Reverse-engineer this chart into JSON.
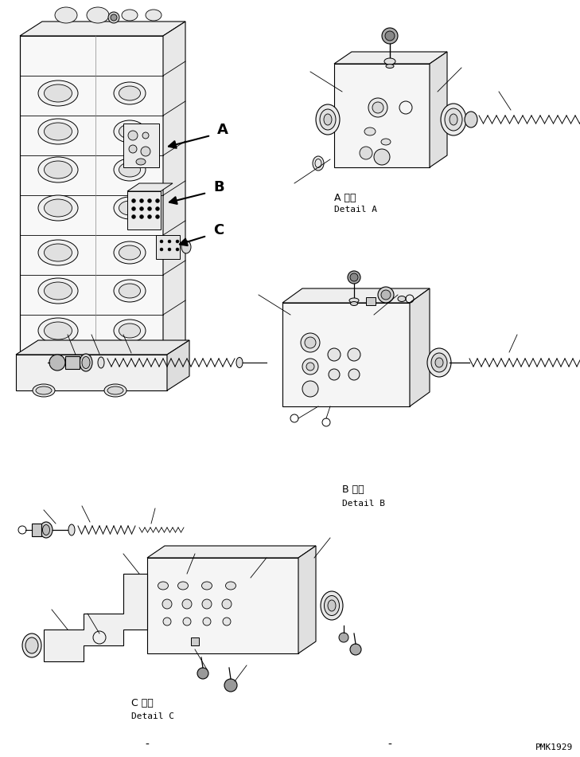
{
  "bg_color": "#ffffff",
  "line_color": "#000000",
  "fig_width": 7.29,
  "fig_height": 9.5,
  "dpi": 100,
  "watermark": "PMK1929",
  "labels": {
    "A_detail_jp": "A 詳細",
    "A_detail_en": "Detail A",
    "B_detail_jp": "B 詳細",
    "B_detail_en": "Detail B",
    "C_detail_jp": "C 詳細",
    "C_detail_en": "Detail C",
    "label_A": "A",
    "label_B": "B",
    "label_C": "C"
  }
}
